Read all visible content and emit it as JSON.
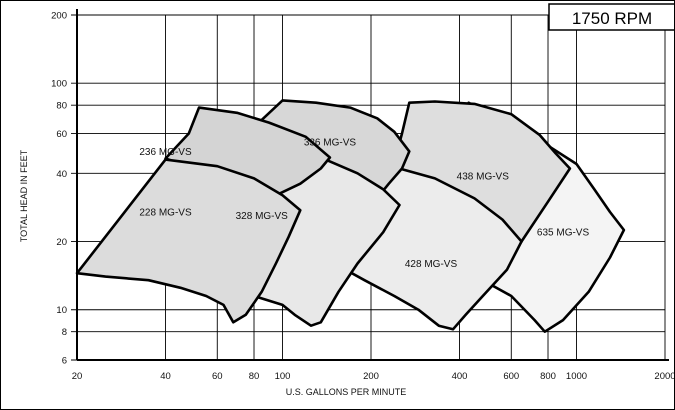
{
  "chart_data": {
    "type": "area",
    "title": "1750 RPM",
    "xlabel": "U.S. GALLONS PER MINUTE",
    "ylabel": "TOTAL HEAD IN FEET",
    "x_scale": "log",
    "y_scale": "log",
    "xlim": [
      20,
      2000
    ],
    "ylim": [
      6,
      200
    ],
    "x_ticks": [
      20,
      40,
      60,
      80,
      100,
      200,
      400,
      600,
      800,
      1000,
      2000
    ],
    "y_ticks": [
      6,
      8,
      10,
      20,
      40,
      60,
      80,
      100,
      200
    ],
    "grid": true,
    "series": [
      {
        "name": "635 MG-VS",
        "label_at": [
          900,
          22
        ],
        "fill": "#f4f4f4",
        "points": [
          [
            430,
            82
          ],
          [
            550,
            68
          ],
          [
            800,
            53
          ],
          [
            1000,
            44
          ],
          [
            1150,
            34
          ],
          [
            1300,
            27
          ],
          [
            1450,
            22.5
          ],
          [
            1300,
            17
          ],
          [
            1100,
            12
          ],
          [
            900,
            9
          ],
          [
            780,
            8
          ],
          [
            720,
            9
          ],
          [
            600,
            11.5
          ],
          [
            480,
            13.5
          ]
        ]
      },
      {
        "name": "438 MG-VS",
        "label_at": [
          480,
          39
        ],
        "fill": "#dedede",
        "points": [
          [
            270,
            82
          ],
          [
            330,
            83
          ],
          [
            450,
            81
          ],
          [
            600,
            73
          ],
          [
            750,
            59
          ],
          [
            850,
            49
          ],
          [
            950,
            42
          ],
          [
            800,
            30
          ],
          [
            650,
            20
          ],
          [
            540,
            14
          ],
          [
            450,
            11
          ],
          [
            400,
            9.8
          ],
          [
            380,
            8.8
          ],
          [
            360,
            11.5
          ],
          [
            320,
            20
          ],
          [
            290,
            31
          ],
          [
            260,
            38
          ],
          [
            240,
            45
          ],
          [
            255,
            60
          ]
        ]
      },
      {
        "name": "428 MG-VS",
        "label_at": [
          320,
          16
        ],
        "fill": "#ececec",
        "points": [
          [
            105,
            48.5
          ],
          [
            150,
            48
          ],
          [
            220,
            44
          ],
          [
            330,
            38
          ],
          [
            450,
            31
          ],
          [
            560,
            25
          ],
          [
            650,
            20
          ],
          [
            580,
            15
          ],
          [
            480,
            11.5
          ],
          [
            420,
            9.5
          ],
          [
            380,
            8.2
          ],
          [
            340,
            8.5
          ],
          [
            290,
            10
          ],
          [
            240,
            11.5
          ],
          [
            190,
            13.5
          ],
          [
            150,
            16
          ],
          [
            130,
            19
          ],
          [
            120,
            22
          ],
          [
            110,
            26
          ],
          [
            100,
            30
          ]
        ]
      },
      {
        "name": "336 MG-VS",
        "label_at": [
          145,
          55
        ],
        "fill": "#d7d7d7",
        "points": [
          [
            100,
            84
          ],
          [
            130,
            82
          ],
          [
            170,
            78
          ],
          [
            210,
            70
          ],
          [
            240,
            61
          ],
          [
            270,
            50
          ],
          [
            255,
            42
          ],
          [
            230,
            36
          ],
          [
            205,
            30
          ],
          [
            180,
            28
          ],
          [
            160,
            30
          ],
          [
            150,
            34
          ],
          [
            140,
            40
          ],
          [
            120,
            46
          ],
          [
            80,
            64
          ]
        ]
      },
      {
        "name": "328 MG-VS",
        "label_at": [
          85,
          26
        ],
        "fill": "#e8e8e8",
        "points": [
          [
            70,
            48
          ],
          [
            100,
            48
          ],
          [
            140,
            46
          ],
          [
            180,
            40
          ],
          [
            220,
            34
          ],
          [
            250,
            29
          ],
          [
            220,
            22
          ],
          [
            180,
            16
          ],
          [
            155,
            12
          ],
          [
            135,
            8.8
          ],
          [
            125,
            8.5
          ],
          [
            110,
            9.5
          ],
          [
            100,
            10.5
          ],
          [
            80,
            11.5
          ],
          [
            70,
            12.5
          ]
        ]
      },
      {
        "name": "236 MG-VS",
        "label_at": [
          40,
          50
        ],
        "fill": "#d4d4d4",
        "points": [
          [
            52,
            78
          ],
          [
            70,
            74
          ],
          [
            90,
            67
          ],
          [
            120,
            58
          ],
          [
            145,
            47
          ],
          [
            135,
            42
          ],
          [
            115,
            36
          ],
          [
            95,
            32
          ],
          [
            80,
            31
          ],
          [
            70,
            33
          ],
          [
            60,
            38
          ],
          [
            50,
            42
          ],
          [
            40,
            46.5
          ],
          [
            48,
            60
          ]
        ]
      },
      {
        "name": "228 MG-VS",
        "label_at": [
          40,
          27
        ],
        "fill": "#dcdcdc",
        "points": [
          [
            40,
            46
          ],
          [
            60,
            43
          ],
          [
            80,
            38
          ],
          [
            100,
            32
          ],
          [
            115,
            27.5
          ],
          [
            105,
            21
          ],
          [
            95,
            16
          ],
          [
            85,
            12
          ],
          [
            75,
            9.5
          ],
          [
            68,
            8.8
          ],
          [
            63,
            10.5
          ],
          [
            55,
            11.5
          ],
          [
            45,
            12.5
          ],
          [
            35,
            13.5
          ],
          [
            25,
            14
          ],
          [
            20,
            14.5
          ]
        ]
      }
    ]
  }
}
